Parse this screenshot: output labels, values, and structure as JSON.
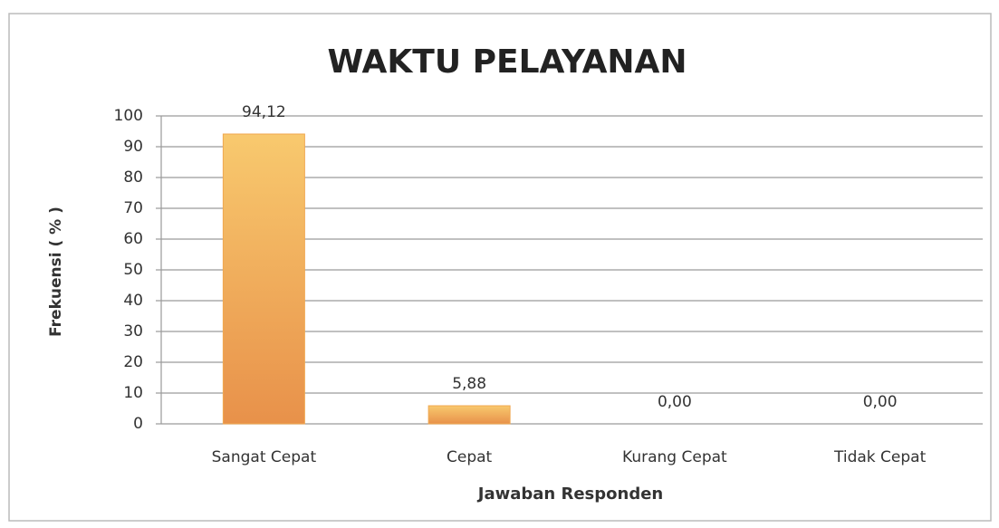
{
  "chart_data": {
    "type": "bar",
    "title": "WAKTU PELAYANAN",
    "x_label": "Jawaban Responden",
    "y_label": "Frekuensi ( % )",
    "categories": [
      "Sangat Cepat",
      "Cepat",
      "Kurang Cepat",
      "Tidak Cepat"
    ],
    "values": [
      94.12,
      5.88,
      0,
      0
    ],
    "value_labels": [
      "94,12",
      "5,88",
      "0,00",
      "0,00"
    ],
    "color": "#f0a850",
    "ylim": [
      0,
      100
    ],
    "yticks": [
      0,
      10,
      20,
      30,
      40,
      50,
      60,
      70,
      80,
      90,
      100
    ],
    "grid": true
  }
}
